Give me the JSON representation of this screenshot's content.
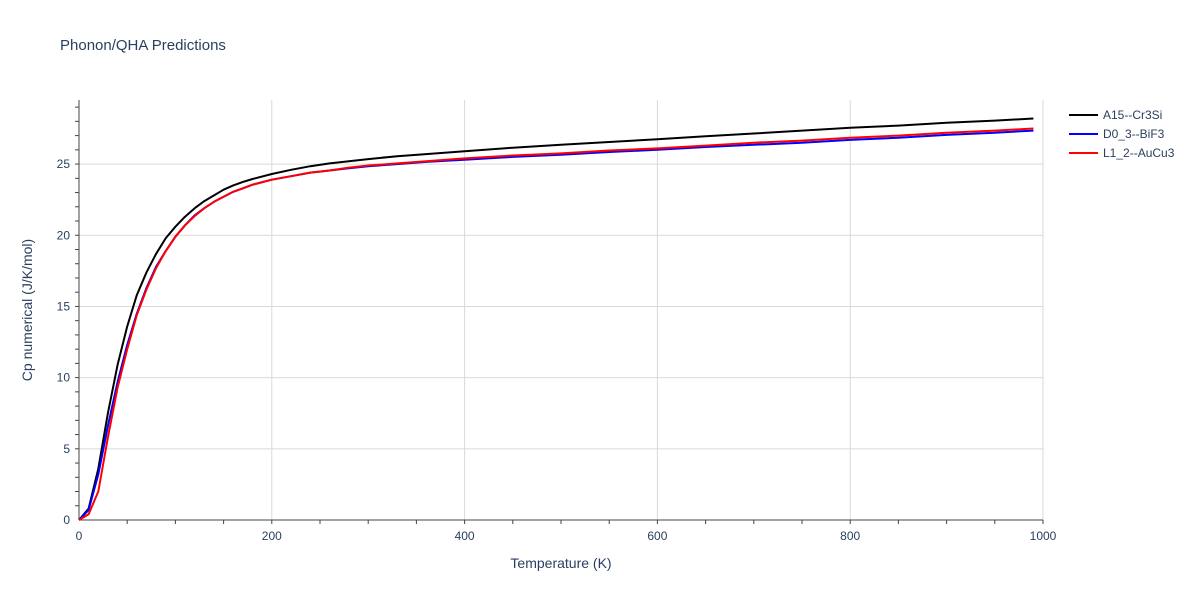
{
  "chart_data": {
    "type": "line",
    "title": "Phonon/QHA Predictions",
    "xlabel": "Temperature (K)",
    "ylabel": "Cp numerical (J/K/mol)",
    "xlim": [
      0,
      1000
    ],
    "ylim": [
      0,
      29.5
    ],
    "xticks": [
      0,
      200,
      400,
      600,
      800,
      1000
    ],
    "yticks": [
      0,
      5,
      10,
      15,
      20,
      25
    ],
    "xtick_labels": [
      "0",
      "200",
      "400",
      "600",
      "800",
      "1000"
    ],
    "ytick_labels": [
      "0",
      "5",
      "10",
      "15",
      "20",
      "25"
    ],
    "grid": true,
    "legend_position": "top-right",
    "series": [
      {
        "name": "A15--Cr3Si",
        "color": "#000000",
        "x": [
          0,
          10,
          20,
          30,
          40,
          50,
          60,
          70,
          80,
          90,
          100,
          110,
          120,
          130,
          140,
          150,
          160,
          170,
          180,
          200,
          220,
          240,
          260,
          280,
          300,
          330,
          360,
          400,
          450,
          500,
          550,
          600,
          650,
          700,
          750,
          800,
          850,
          900,
          950,
          990
        ],
        "y": [
          0,
          0.8,
          3.6,
          7.5,
          10.9,
          13.6,
          15.8,
          17.4,
          18.7,
          19.8,
          20.6,
          21.3,
          21.9,
          22.4,
          22.8,
          23.2,
          23.5,
          23.75,
          23.95,
          24.3,
          24.6,
          24.85,
          25.05,
          25.2,
          25.35,
          25.55,
          25.7,
          25.9,
          26.15,
          26.35,
          26.55,
          26.75,
          26.95,
          27.15,
          27.35,
          27.55,
          27.7,
          27.9,
          28.05,
          28.2
        ]
      },
      {
        "name": "D0_3--BiF3",
        "color": "#0000ff",
        "x": [
          0,
          10,
          20,
          30,
          40,
          50,
          60,
          70,
          80,
          90,
          100,
          110,
          120,
          130,
          140,
          150,
          160,
          170,
          180,
          200,
          220,
          240,
          260,
          280,
          300,
          330,
          360,
          400,
          450,
          500,
          550,
          600,
          650,
          700,
          750,
          800,
          850,
          900,
          950,
          990
        ],
        "y": [
          0,
          0.7,
          3.2,
          6.6,
          9.7,
          12.3,
          14.5,
          16.3,
          17.8,
          18.9,
          19.9,
          20.7,
          21.4,
          21.9,
          22.35,
          22.7,
          23.05,
          23.3,
          23.55,
          23.9,
          24.15,
          24.4,
          24.55,
          24.7,
          24.85,
          25.0,
          25.15,
          25.3,
          25.5,
          25.65,
          25.85,
          26.0,
          26.2,
          26.35,
          26.5,
          26.7,
          26.85,
          27.05,
          27.2,
          27.35
        ]
      },
      {
        "name": "L1_2--AuCu3",
        "color": "#ff0000",
        "x": [
          0,
          10,
          20,
          30,
          40,
          50,
          60,
          70,
          80,
          90,
          100,
          110,
          120,
          130,
          140,
          150,
          160,
          170,
          180,
          200,
          220,
          240,
          260,
          280,
          300,
          330,
          360,
          400,
          450,
          500,
          550,
          600,
          650,
          700,
          750,
          800,
          850,
          900,
          950,
          990
        ],
        "y": [
          0,
          0.4,
          2.0,
          5.8,
          9.3,
          12.0,
          14.4,
          16.2,
          17.7,
          18.9,
          19.9,
          20.7,
          21.35,
          21.9,
          22.35,
          22.7,
          23.05,
          23.3,
          23.55,
          23.9,
          24.15,
          24.4,
          24.55,
          24.75,
          24.9,
          25.05,
          25.2,
          25.4,
          25.6,
          25.75,
          25.95,
          26.1,
          26.3,
          26.5,
          26.65,
          26.85,
          27.0,
          27.2,
          27.35,
          27.5
        ]
      }
    ]
  }
}
